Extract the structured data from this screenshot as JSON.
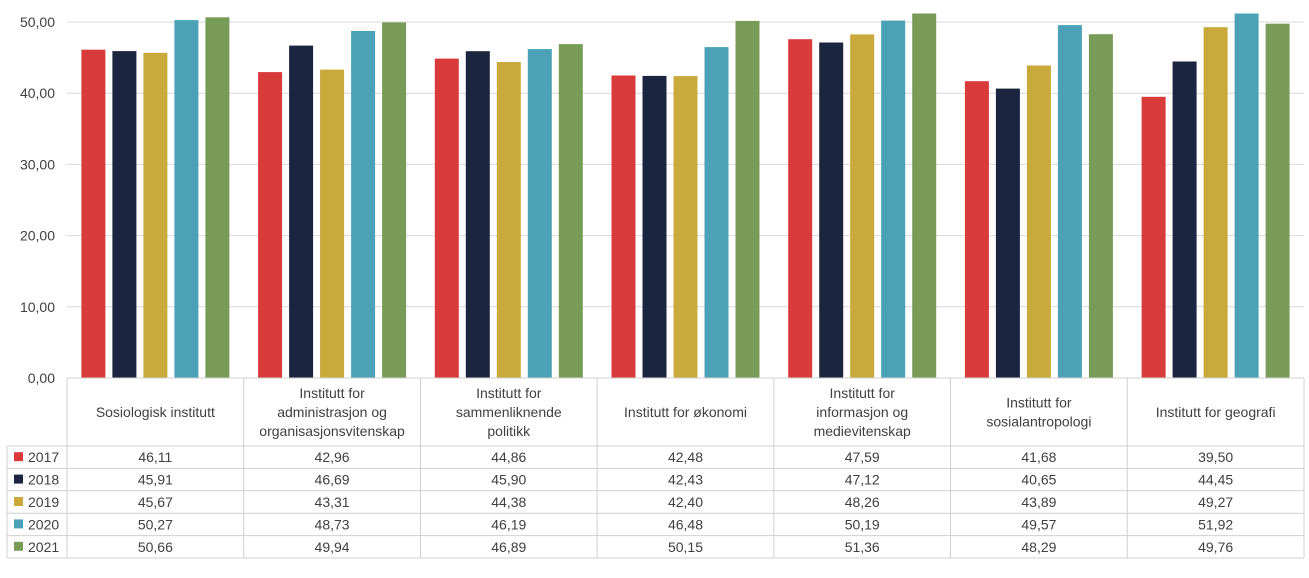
{
  "chart_data": {
    "type": "bar",
    "title": "",
    "xlabel": "",
    "ylabel": "",
    "ylim": [
      0,
      50
    ],
    "y_ticks": [
      "0,00",
      "10,00",
      "20,00",
      "30,00",
      "40,00",
      "50,00"
    ],
    "y_tick_values": [
      0,
      10,
      20,
      30,
      40,
      50
    ],
    "grid": true,
    "legend": "data-table-left",
    "categories": [
      "Sosiologisk institutt",
      "Institutt for administrasjon og organisasjonsvitenskap",
      "Institutt for sammenliknende politikk",
      "Institutt for økonomi",
      "Institutt for informasjon og medievitenskap",
      "Institutt for sosialantropologi",
      "Institutt for geografi"
    ],
    "category_lines": [
      [
        "Sosiologisk institutt"
      ],
      [
        "Institutt for",
        "administrasjon og",
        "organisasjonsvitenskap"
      ],
      [
        "Institutt for",
        "sammenliknende",
        "politikk"
      ],
      [
        "Institutt for økonomi"
      ],
      [
        "Institutt for",
        "informasjon og",
        "medievitenskap"
      ],
      [
        "Institutt for",
        "sosialantropologi"
      ],
      [
        "Institutt for geografi"
      ]
    ],
    "series": [
      {
        "name": "2017",
        "color": "#d93b3b",
        "values": [
          46.11,
          42.96,
          44.86,
          42.48,
          47.59,
          41.68,
          39.5
        ],
        "labels": [
          "46,11",
          "42,96",
          "44,86",
          "42,48",
          "47,59",
          "41,68",
          "39,50"
        ]
      },
      {
        "name": "2018",
        "color": "#1b2540",
        "values": [
          45.91,
          46.69,
          45.9,
          42.43,
          47.12,
          40.65,
          44.45
        ],
        "labels": [
          "45,91",
          "46,69",
          "45,90",
          "42,43",
          "47,12",
          "40,65",
          "44,45"
        ]
      },
      {
        "name": "2019",
        "color": "#c9a83c",
        "values": [
          45.67,
          43.31,
          44.38,
          42.4,
          48.26,
          43.89,
          49.27
        ],
        "labels": [
          "45,67",
          "43,31",
          "44,38",
          "42,40",
          "48,26",
          "43,89",
          "49,27"
        ]
      },
      {
        "name": "2020",
        "color": "#4ba2b6",
        "values": [
          50.27,
          48.73,
          46.19,
          46.48,
          50.19,
          49.57,
          51.92
        ],
        "labels": [
          "50,27",
          "48,73",
          "46,19",
          "46,48",
          "50,19",
          "49,57",
          "51,92"
        ]
      },
      {
        "name": "2021",
        "color": "#789c57",
        "values": [
          50.66,
          49.94,
          46.89,
          50.15,
          51.36,
          48.29,
          49.76
        ],
        "labels": [
          "50,66",
          "49,94",
          "46,89",
          "50,15",
          "51,36",
          "48,29",
          "49,76"
        ]
      }
    ]
  }
}
